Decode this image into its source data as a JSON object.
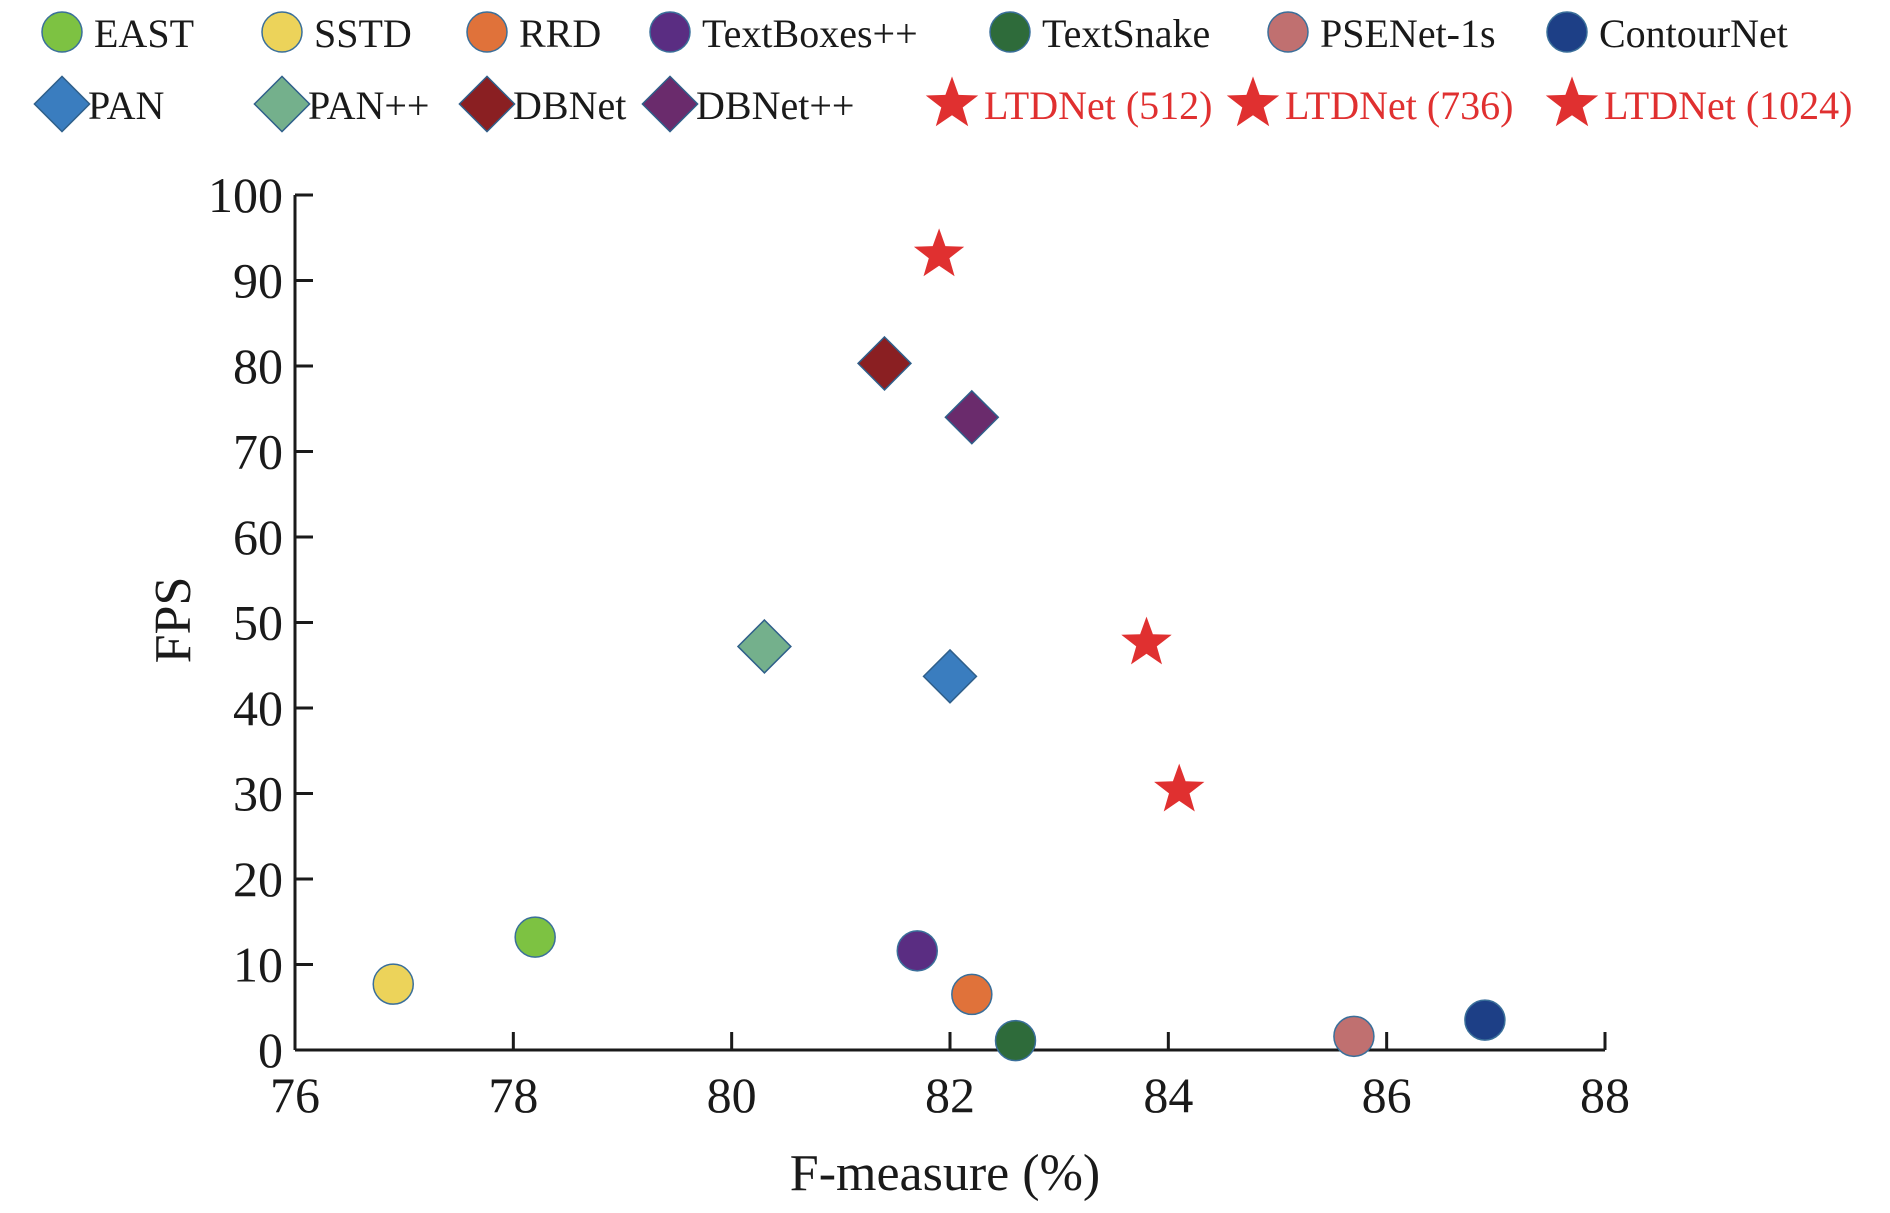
{
  "chart_data": {
    "type": "scatter",
    "xlabel": "F-measure (%)",
    "ylabel": "FPS",
    "xlim": [
      76,
      88
    ],
    "ylim": [
      0,
      100
    ],
    "xticks": [
      "76",
      "78",
      "80",
      "82",
      "84",
      "86",
      "88"
    ],
    "yticks": [
      "0",
      "10",
      "20",
      "30",
      "40",
      "50",
      "60",
      "70",
      "80",
      "90",
      "100"
    ],
    "legend_position": "top",
    "series": [
      {
        "name": "EAST",
        "marker": "circle",
        "color": "#7dc242",
        "points": [
          {
            "x": 78.2,
            "y": 13.2
          }
        ]
      },
      {
        "name": "SSTD",
        "marker": "circle",
        "color": "#ecd35a",
        "points": [
          {
            "x": 76.9,
            "y": 7.7
          }
        ]
      },
      {
        "name": "RRD",
        "marker": "circle",
        "color": "#e0723a",
        "points": [
          {
            "x": 82.2,
            "y": 6.5
          }
        ]
      },
      {
        "name": "TextBoxes++",
        "marker": "circle",
        "color": "#5a2d82",
        "points": [
          {
            "x": 81.7,
            "y": 11.6
          }
        ]
      },
      {
        "name": "TextSnake",
        "marker": "circle",
        "color": "#2e6b3a",
        "points": [
          {
            "x": 82.6,
            "y": 1.1
          }
        ]
      },
      {
        "name": "PSENet-1s",
        "marker": "circle",
        "color": "#c07070",
        "points": [
          {
            "x": 85.7,
            "y": 1.6
          }
        ]
      },
      {
        "name": "ContourNet",
        "marker": "circle",
        "color": "#1d3f86",
        "points": [
          {
            "x": 86.9,
            "y": 3.5
          }
        ]
      },
      {
        "name": "PAN",
        "marker": "diamond",
        "color": "#3a7dbf",
        "points": [
          {
            "x": 82.0,
            "y": 43.7
          }
        ]
      },
      {
        "name": "PAN++",
        "marker": "diamond",
        "color": "#74b08c",
        "points": [
          {
            "x": 80.3,
            "y": 47.2
          }
        ]
      },
      {
        "name": "DBNet",
        "marker": "diamond",
        "color": "#8a1f22",
        "points": [
          {
            "x": 81.4,
            "y": 80.3
          }
        ]
      },
      {
        "name": "DBNet++",
        "marker": "diamond",
        "color": "#6a2b6c",
        "points": [
          {
            "x": 82.2,
            "y": 74.0
          }
        ]
      },
      {
        "name": "LTDNet (512)",
        "marker": "star",
        "color": "#e03030",
        "points": [
          {
            "x": 81.9,
            "y": 93.0
          }
        ]
      },
      {
        "name": "LTDNet (736)",
        "marker": "star",
        "color": "#e03030",
        "points": [
          {
            "x": 83.8,
            "y": 47.6
          }
        ]
      },
      {
        "name": "LTDNet (1024)",
        "marker": "star",
        "color": "#e03030",
        "points": [
          {
            "x": 84.1,
            "y": 30.4
          }
        ]
      }
    ],
    "legend_text_colors": {
      "default": "#1a1a1a",
      "highlight": "#e03030"
    },
    "axis_color": "#1a1a1a"
  }
}
